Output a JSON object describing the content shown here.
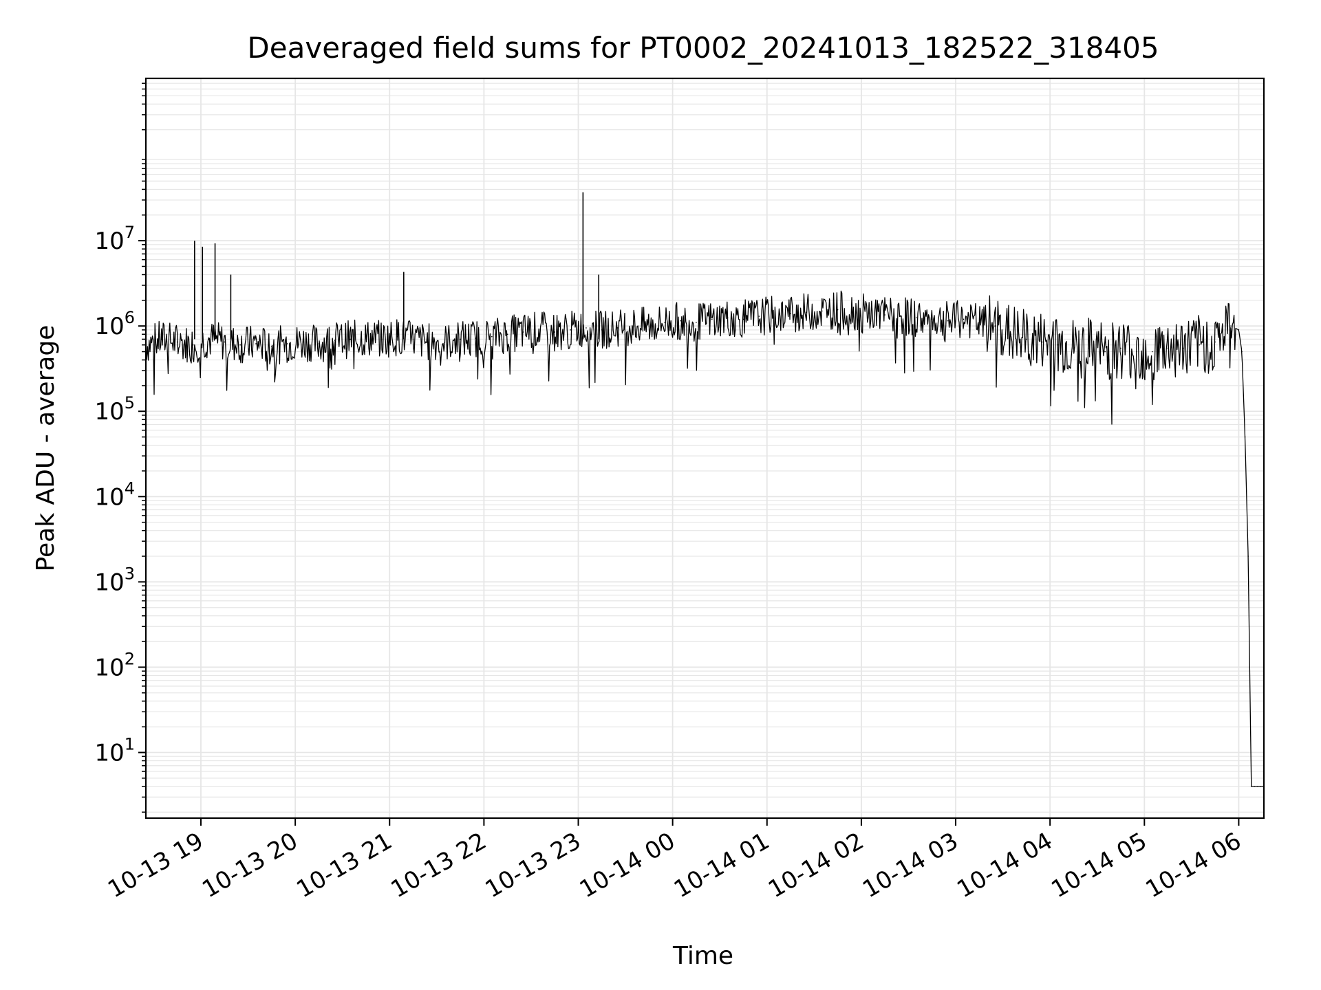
{
  "chart_data": {
    "type": "line",
    "title": "Deaveraged field sums for PT0002_20241013_182522_318405",
    "xlabel": "Time",
    "ylabel": "Peak ADU - average",
    "yscale": "log",
    "grid": true,
    "line_color": "#000000",
    "grid_color": "#e6e6e6",
    "xlim": [
      "2024-10-13 18:25",
      "2024-10-14 06:16"
    ],
    "ylim": [
      1.7,
      800000000
    ],
    "x_ticks": [
      {
        "t": "2024-10-13 19:00",
        "label": "10-13 19"
      },
      {
        "t": "2024-10-13 20:00",
        "label": "10-13 20"
      },
      {
        "t": "2024-10-13 21:00",
        "label": "10-13 21"
      },
      {
        "t": "2024-10-13 22:00",
        "label": "10-13 22"
      },
      {
        "t": "2024-10-13 23:00",
        "label": "10-13 23"
      },
      {
        "t": "2024-10-14 00:00",
        "label": "10-14 00"
      },
      {
        "t": "2024-10-14 01:00",
        "label": "10-14 01"
      },
      {
        "t": "2024-10-14 02:00",
        "label": "10-14 02"
      },
      {
        "t": "2024-10-14 03:00",
        "label": "10-14 03"
      },
      {
        "t": "2024-10-14 04:00",
        "label": "10-14 04"
      },
      {
        "t": "2024-10-14 05:00",
        "label": "10-14 05"
      },
      {
        "t": "2024-10-14 06:00",
        "label": "10-14 06"
      }
    ],
    "y_ticks": [
      {
        "value": 10,
        "base": "10",
        "exp": "1"
      },
      {
        "value": 100,
        "base": "10",
        "exp": "2"
      },
      {
        "value": 1000,
        "base": "10",
        "exp": "3"
      },
      {
        "value": 10000,
        "base": "10",
        "exp": "4"
      },
      {
        "value": 100000,
        "base": "10",
        "exp": "5"
      },
      {
        "value": 1000000,
        "base": "10",
        "exp": "6"
      },
      {
        "value": 10000000,
        "base": "10",
        "exp": "7"
      }
    ],
    "series": [
      {
        "x": [
          "2024-10-13 18:25",
          "2024-10-13 18:35",
          "2024-10-13 18:45",
          "2024-10-13 18:55",
          "2024-10-13 19:05",
          "2024-10-13 19:15",
          "2024-10-13 19:25",
          "2024-10-13 19:35",
          "2024-10-13 19:45",
          "2024-10-13 19:55",
          "2024-10-13 20:05",
          "2024-10-13 20:15",
          "2024-10-13 20:25",
          "2024-10-13 20:35",
          "2024-10-13 20:45",
          "2024-10-13 20:55",
          "2024-10-13 21:05",
          "2024-10-13 21:15",
          "2024-10-13 21:25",
          "2024-10-13 21:35",
          "2024-10-13 21:45",
          "2024-10-13 21:55",
          "2024-10-13 22:05",
          "2024-10-13 22:15",
          "2024-10-13 22:25",
          "2024-10-13 22:35",
          "2024-10-13 22:45",
          "2024-10-13 22:55",
          "2024-10-13 23:05",
          "2024-10-13 23:15",
          "2024-10-13 23:25",
          "2024-10-13 23:35",
          "2024-10-13 23:45",
          "2024-10-13 23:55",
          "2024-10-14 00:05",
          "2024-10-14 00:15",
          "2024-10-14 00:25",
          "2024-10-14 00:35",
          "2024-10-14 00:45",
          "2024-10-14 00:55",
          "2024-10-14 01:05",
          "2024-10-14 01:15",
          "2024-10-14 01:25",
          "2024-10-14 01:35",
          "2024-10-14 01:45",
          "2024-10-14 01:55",
          "2024-10-14 02:05",
          "2024-10-14 02:15",
          "2024-10-14 02:25",
          "2024-10-14 02:35",
          "2024-10-14 02:45",
          "2024-10-14 02:55",
          "2024-10-14 03:05",
          "2024-10-14 03:15",
          "2024-10-14 03:25",
          "2024-10-14 03:35",
          "2024-10-14 03:45",
          "2024-10-14 03:55",
          "2024-10-14 04:05",
          "2024-10-14 04:15",
          "2024-10-14 04:25",
          "2024-10-14 04:35",
          "2024-10-14 04:45",
          "2024-10-14 04:55",
          "2024-10-14 05:05",
          "2024-10-14 05:15",
          "2024-10-14 05:25",
          "2024-10-14 05:35",
          "2024-10-14 05:45",
          "2024-10-14 05:55",
          "2024-10-14 06:00",
          "2024-10-14 06:02",
          "2024-10-14 06:04",
          "2024-10-14 06:06",
          "2024-10-14 06:08",
          "2024-10-14 06:10",
          "2024-10-14 06:12",
          "2024-10-14 06:14",
          "2024-10-14 06:16"
        ],
        "y": [
          600000,
          700000,
          650000,
          600000,
          700000,
          650000,
          600000,
          620000,
          580000,
          620000,
          650000,
          620000,
          680000,
          700000,
          720000,
          700000,
          750000,
          700000,
          650000,
          640000,
          700000,
          720000,
          750000,
          800000,
          850000,
          900000,
          850000,
          900000,
          950000,
          900000,
          950000,
          1000000,
          1000000,
          1100000,
          1150000,
          1100000,
          1200000,
          1250000,
          1200000,
          1300000,
          1350000,
          1400000,
          1450000,
          1500000,
          1550000,
          1500000,
          1400000,
          1350000,
          1300000,
          1250000,
          1200000,
          1150000,
          1200000,
          1100000,
          1000000,
          800000,
          700000,
          650000,
          600000,
          550000,
          550000,
          500000,
          550000,
          500000,
          500000,
          550000,
          550000,
          600000,
          650000,
          1000000,
          900000,
          500000,
          50000,
          2000,
          4,
          4,
          4,
          4,
          4
        ],
        "spikes": [
          {
            "t": "2024-10-13 18:56",
            "y": 10000000
          },
          {
            "t": "2024-10-13 19:01",
            "y": 8500000
          },
          {
            "t": "2024-10-13 19:09",
            "y": 9300000
          },
          {
            "t": "2024-10-13 19:19",
            "y": 4000000
          },
          {
            "t": "2024-10-13 21:09",
            "y": 4300000
          },
          {
            "t": "2024-10-13 23:03",
            "y": 37000000
          },
          {
            "t": "2024-10-13 23:13",
            "y": 4000000
          }
        ]
      }
    ]
  }
}
